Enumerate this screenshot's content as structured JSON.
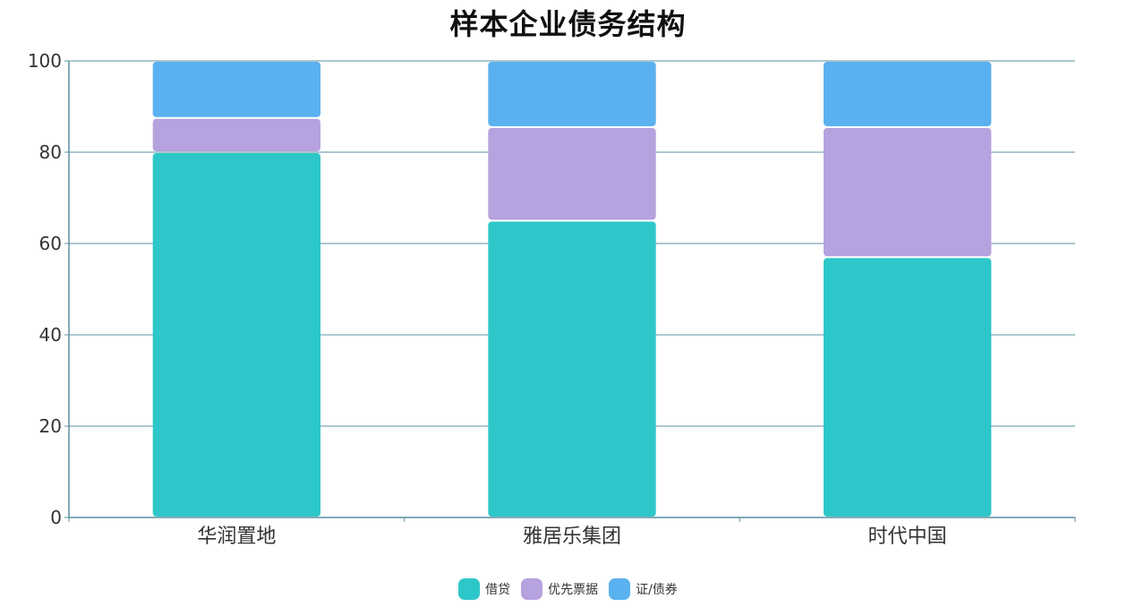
{
  "chart_data": {
    "type": "bar",
    "stacked": true,
    "title": "样本企业债务结构",
    "categories": [
      "华润置地",
      "雅居乐集团",
      "时代中国"
    ],
    "series": [
      {
        "name": "借贷",
        "color": "#2ec7c9",
        "values": [
          80,
          65,
          57
        ]
      },
      {
        "name": "优先票据",
        "color": "#b6a2de",
        "values": [
          7.5,
          20.5,
          28.5
        ]
      },
      {
        "name": "证/债券",
        "color": "#5ab1ef",
        "values": [
          12.5,
          14.5,
          14.5
        ]
      }
    ],
    "ylim": [
      0,
      100
    ],
    "yticks": [
      0,
      20,
      40,
      60,
      80,
      100
    ],
    "grid": true,
    "legend_position": "bottom-center",
    "axis_color": "#5b8fa0"
  }
}
